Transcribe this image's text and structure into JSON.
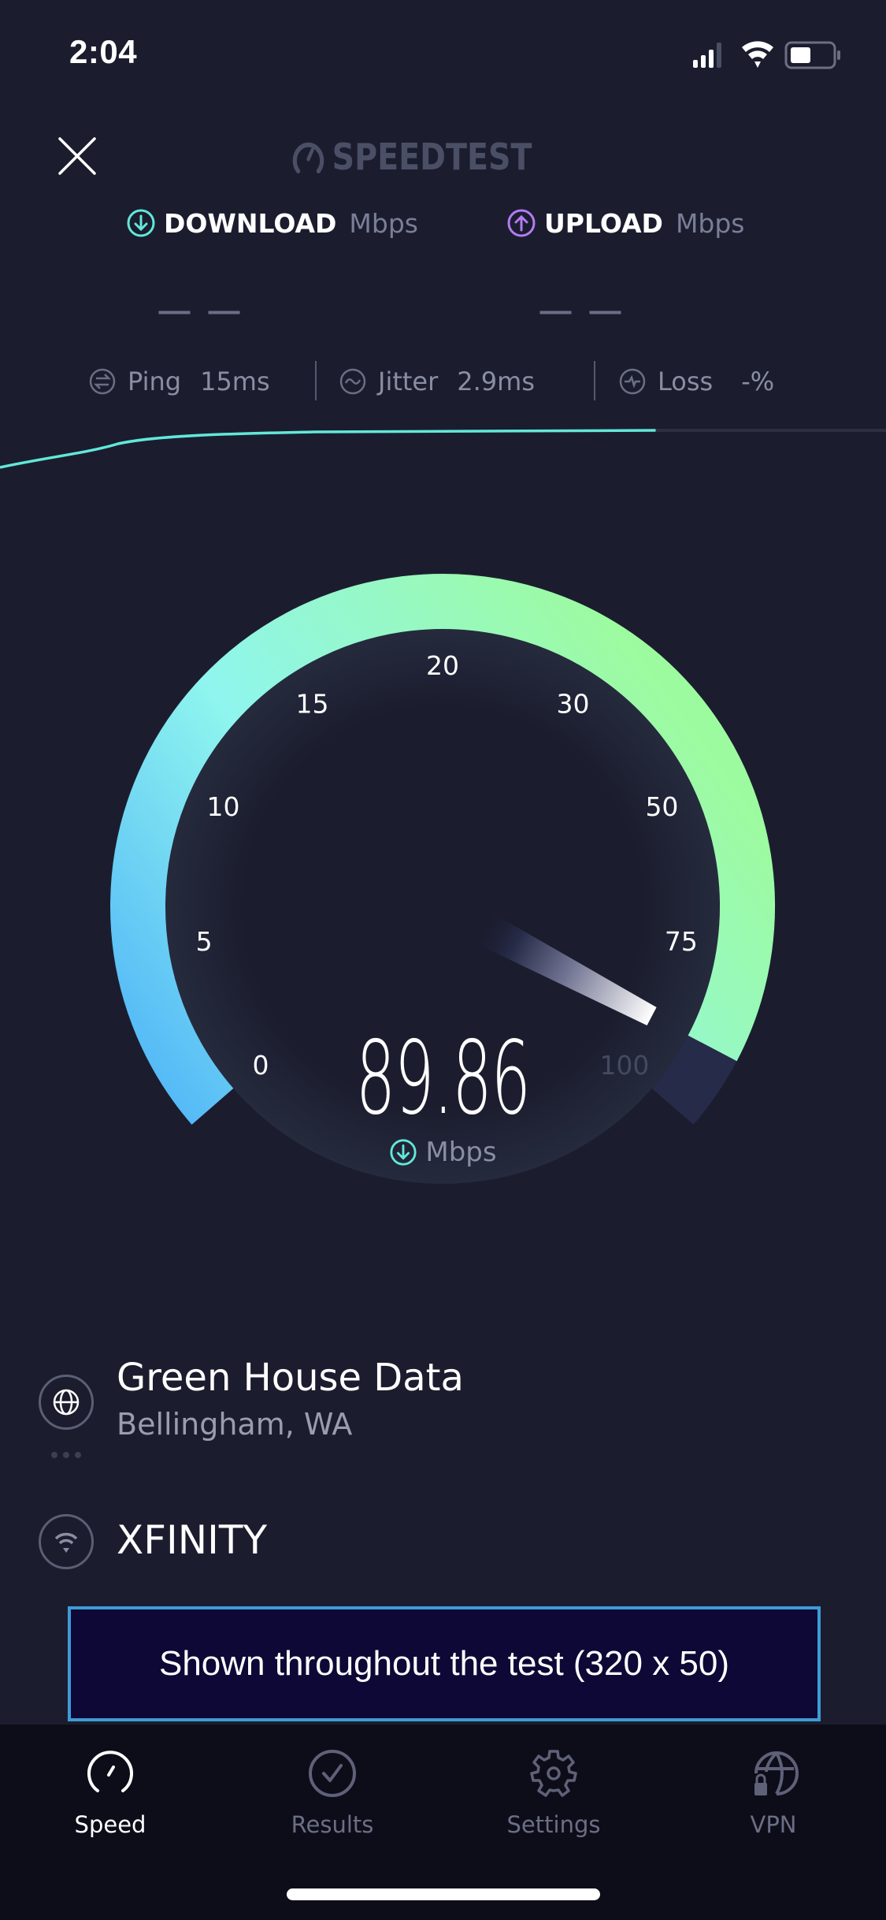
{
  "status_bar": {
    "time": "2:04",
    "signal_bars": 3,
    "battery_level": 0.5
  },
  "header": {
    "close_icon": "close-icon",
    "logo_text": "SPEEDTEST"
  },
  "download": {
    "label": "DOWNLOAD",
    "unit": "Mbps",
    "value": "— —",
    "icon": "arrow-down-circle-icon",
    "color": "#62e8da"
  },
  "upload": {
    "label": "UPLOAD",
    "unit": "Mbps",
    "value": "— —",
    "icon": "arrow-up-circle-icon",
    "color": "#b27cf5"
  },
  "stats": {
    "ping": {
      "label": "Ping",
      "value": "15ms"
    },
    "jitter": {
      "label": "Jitter",
      "value": "2.9ms"
    },
    "loss": {
      "label": "Loss",
      "value": "-%"
    }
  },
  "test_progress": 0.74,
  "gauge": {
    "ticks": [
      "0",
      "5",
      "10",
      "15",
      "20",
      "30",
      "50",
      "75",
      "100"
    ],
    "value": 89.86,
    "value_text": "89.86",
    "unit": "Mbps",
    "colors": {
      "start": "#4fb3f8",
      "mid": "#8ff5ee",
      "end": "#9dfb9f",
      "track": "#252b48"
    }
  },
  "server": {
    "name": "Green House Data",
    "location": "Bellingham, WA"
  },
  "isp": {
    "name": "XFINITY"
  },
  "ad": {
    "text": "Shown throughout the test (320 x 50)"
  },
  "tabs": [
    {
      "label": "Speed",
      "icon": "speedometer-icon",
      "active": true
    },
    {
      "label": "Results",
      "icon": "check-circle-icon",
      "active": false
    },
    {
      "label": "Settings",
      "icon": "gear-icon",
      "active": false
    },
    {
      "label": "VPN",
      "icon": "globe-lock-icon",
      "active": false
    }
  ]
}
